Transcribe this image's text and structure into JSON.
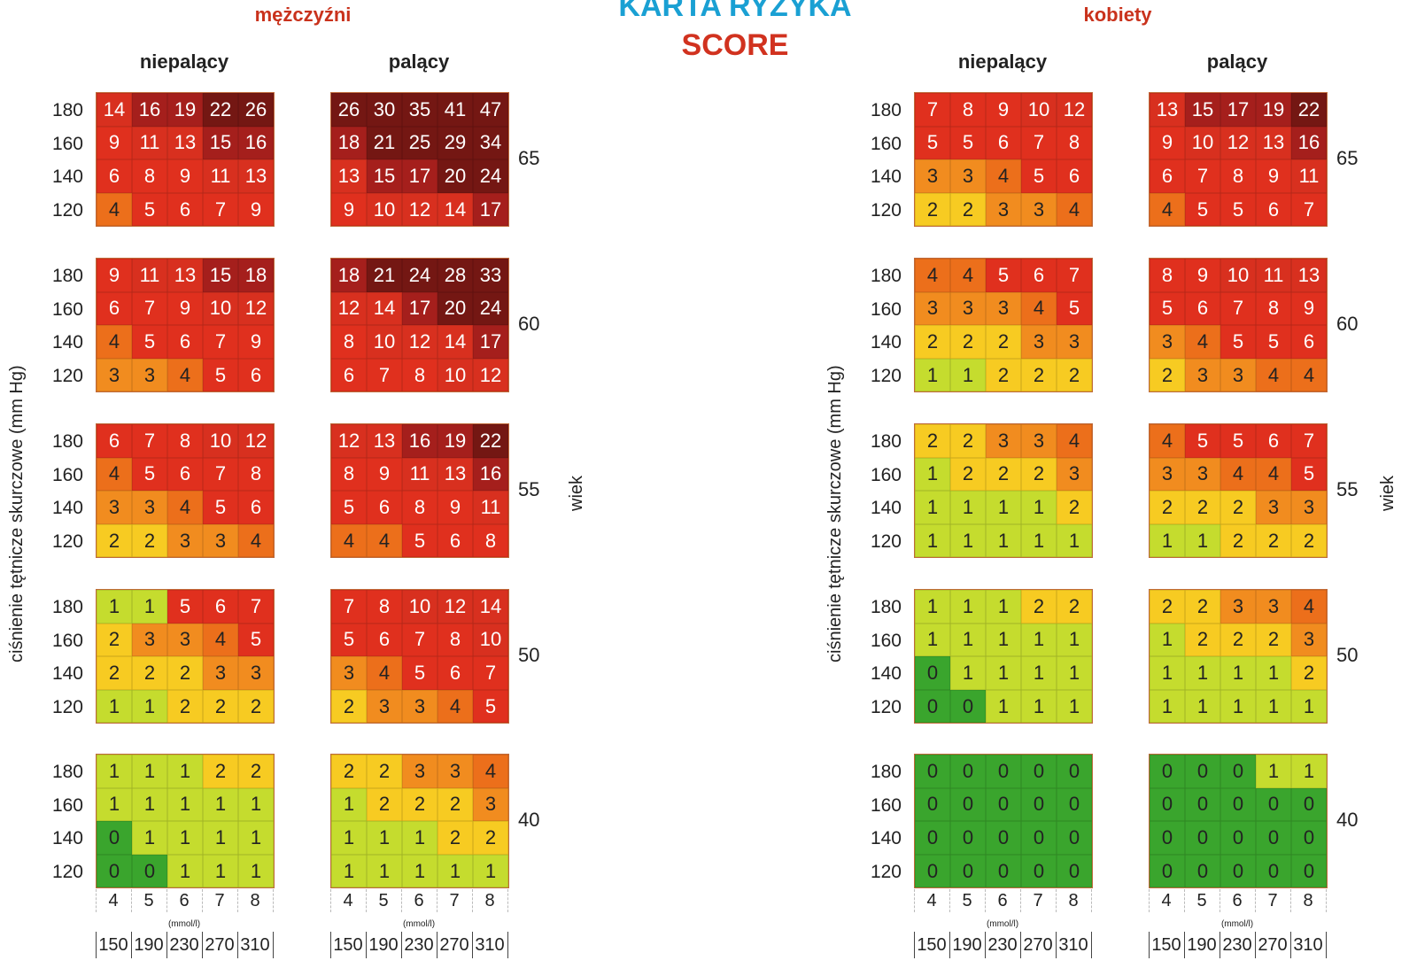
{
  "title": {
    "line1": "KARTA RYZYKA",
    "line2": "SCORE"
  },
  "sexes": [
    "mężczyźni",
    "kobiety"
  ],
  "smoking": [
    "niepalący",
    "palący"
  ],
  "side_labels": {
    "sbp_axis": "ciśnienie tętnicze skurczowe (mm Hg)",
    "age_axis": "wiek"
  },
  "cholesterol": {
    "mmol": [
      "4",
      "5",
      "6",
      "7",
      "8"
    ],
    "unit": "(mmol/l)",
    "mgdl": [
      "150",
      "190",
      "230",
      "270",
      "310"
    ]
  },
  "colors": {
    "0": "#3aa52d",
    "1": "#c5dc2e",
    "2": "#f7cb22",
    "3": "#f18c1f",
    "4": "#ec6f1b",
    "5": "#e0301e",
    "6": "#d8301f",
    "7": "#a51f1c",
    "8": "#741713"
  },
  "chart_data": {
    "type": "heatmap",
    "title": "KARTA RYZYKA SCORE",
    "sbp_levels": [
      "180",
      "160",
      "140",
      "120"
    ],
    "ages": [
      "65",
      "60",
      "55",
      "50",
      "40"
    ],
    "cholesterol_mmol": [
      "4",
      "5",
      "6",
      "7",
      "8"
    ],
    "panels": [
      {
        "sex": "mężczyźni",
        "smoking": "niepalący",
        "blocks": [
          [
            [
              14,
              16,
              19,
              22,
              26
            ],
            [
              9,
              11,
              13,
              15,
              16
            ],
            [
              6,
              8,
              9,
              11,
              13
            ],
            [
              4,
              5,
              6,
              7,
              9
            ]
          ],
          [
            [
              9,
              11,
              13,
              15,
              18
            ],
            [
              6,
              7,
              9,
              10,
              12
            ],
            [
              4,
              5,
              6,
              7,
              9
            ],
            [
              3,
              3,
              4,
              5,
              6
            ]
          ],
          [
            [
              6,
              7,
              8,
              10,
              12
            ],
            [
              4,
              5,
              6,
              7,
              8
            ],
            [
              3,
              3,
              4,
              5,
              6
            ],
            [
              2,
              2,
              3,
              3,
              4
            ]
          ],
          [
            [
              1,
              1,
              5,
              6,
              7
            ],
            [
              2,
              3,
              3,
              4,
              5
            ],
            [
              2,
              2,
              2,
              3,
              3
            ],
            [
              1,
              1,
              2,
              2,
              2
            ]
          ],
          [
            [
              1,
              1,
              1,
              2,
              2
            ],
            [
              1,
              1,
              1,
              1,
              1
            ],
            [
              0,
              1,
              1,
              1,
              1
            ],
            [
              0,
              0,
              1,
              1,
              1
            ]
          ]
        ]
      },
      {
        "sex": "mężczyźni",
        "smoking": "palący",
        "blocks": [
          [
            [
              26,
              30,
              35,
              41,
              47
            ],
            [
              18,
              21,
              25,
              29,
              34
            ],
            [
              13,
              15,
              17,
              20,
              24
            ],
            [
              9,
              10,
              12,
              14,
              17
            ]
          ],
          [
            [
              18,
              21,
              24,
              28,
              33
            ],
            [
              12,
              14,
              17,
              20,
              24
            ],
            [
              8,
              10,
              12,
              14,
              17
            ],
            [
              6,
              7,
              8,
              10,
              12
            ]
          ],
          [
            [
              12,
              13,
              16,
              19,
              22
            ],
            [
              8,
              9,
              11,
              13,
              16
            ],
            [
              5,
              6,
              8,
              9,
              11
            ],
            [
              4,
              4,
              5,
              6,
              8
            ]
          ],
          [
            [
              7,
              8,
              10,
              12,
              14
            ],
            [
              5,
              6,
              7,
              8,
              10
            ],
            [
              3,
              4,
              5,
              6,
              7
            ],
            [
              2,
              3,
              3,
              4,
              5
            ]
          ],
          [
            [
              2,
              2,
              3,
              3,
              4
            ],
            [
              1,
              2,
              2,
              2,
              3
            ],
            [
              1,
              1,
              1,
              2,
              2
            ],
            [
              1,
              1,
              1,
              1,
              1
            ]
          ]
        ]
      },
      {
        "sex": "kobiety",
        "smoking": "niepalący",
        "blocks": [
          [
            [
              7,
              8,
              9,
              10,
              12
            ],
            [
              5,
              5,
              6,
              7,
              8
            ],
            [
              3,
              3,
              4,
              5,
              6
            ],
            [
              2,
              2,
              3,
              3,
              4
            ]
          ],
          [
            [
              4,
              4,
              5,
              6,
              7
            ],
            [
              3,
              3,
              3,
              4,
              5
            ],
            [
              2,
              2,
              2,
              3,
              3
            ],
            [
              1,
              1,
              2,
              2,
              2
            ]
          ],
          [
            [
              2,
              2,
              3,
              3,
              4
            ],
            [
              1,
              2,
              2,
              2,
              3
            ],
            [
              1,
              1,
              1,
              1,
              2
            ],
            [
              1,
              1,
              1,
              1,
              1
            ]
          ],
          [
            [
              1,
              1,
              1,
              2,
              2
            ],
            [
              1,
              1,
              1,
              1,
              1
            ],
            [
              0,
              1,
              1,
              1,
              1
            ],
            [
              0,
              0,
              1,
              1,
              1
            ]
          ],
          [
            [
              0,
              0,
              0,
              0,
              0
            ],
            [
              0,
              0,
              0,
              0,
              0
            ],
            [
              0,
              0,
              0,
              0,
              0
            ],
            [
              0,
              0,
              0,
              0,
              0
            ]
          ]
        ]
      },
      {
        "sex": "kobiety",
        "smoking": "palący",
        "blocks": [
          [
            [
              13,
              15,
              17,
              19,
              22
            ],
            [
              9,
              10,
              12,
              13,
              16
            ],
            [
              6,
              7,
              8,
              9,
              11
            ],
            [
              4,
              5,
              5,
              6,
              7
            ]
          ],
          [
            [
              8,
              9,
              10,
              11,
              13
            ],
            [
              5,
              6,
              7,
              8,
              9
            ],
            [
              3,
              4,
              5,
              5,
              6
            ],
            [
              2,
              3,
              3,
              4,
              4
            ]
          ],
          [
            [
              4,
              5,
              5,
              6,
              7
            ],
            [
              3,
              3,
              4,
              4,
              5
            ],
            [
              2,
              2,
              2,
              3,
              3
            ],
            [
              1,
              1,
              2,
              2,
              2
            ]
          ],
          [
            [
              2,
              2,
              3,
              3,
              4
            ],
            [
              1,
              2,
              2,
              2,
              3
            ],
            [
              1,
              1,
              1,
              1,
              2
            ],
            [
              1,
              1,
              1,
              1,
              1
            ]
          ],
          [
            [
              0,
              0,
              0,
              1,
              1
            ],
            [
              0,
              0,
              0,
              0,
              0
            ],
            [
              0,
              0,
              0,
              0,
              0
            ],
            [
              0,
              0,
              0,
              0,
              0
            ]
          ]
        ]
      }
    ]
  }
}
